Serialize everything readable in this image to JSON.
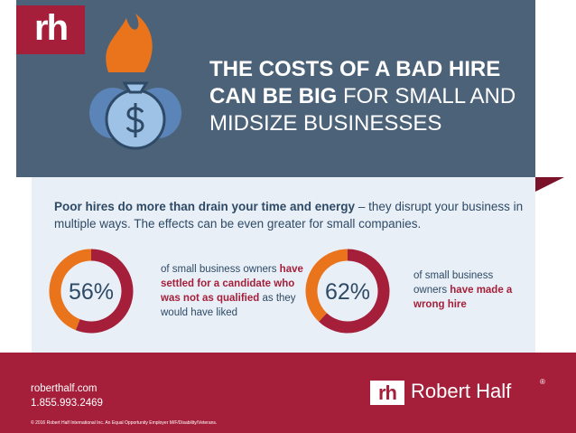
{
  "header": {
    "logo": "rh",
    "title": {
      "line1": "THE COSTS OF A BAD HIRE",
      "bold": "CAN BE BIG",
      "rest": " FOR SMALL AND",
      "line3": "MIDSIZE BUSINESSES"
    }
  },
  "intro": {
    "bold": "Poor hires do more than drain your time and energy",
    "text": " – they disrupt your business in multiple ways. The effects can be even greater for small companies."
  },
  "stats": [
    {
      "value": 56,
      "value_label": "56%",
      "before": "of small business owners ",
      "bold": "have settled for a candidate who was not as qualified",
      "after": " as they would have liked"
    },
    {
      "value": 62,
      "value_label": "62%",
      "before": "of small business owners ",
      "bold": "have made a wrong hire",
      "after": ""
    }
  ],
  "footer": {
    "website": "roberthalf.com",
    "phone": "1.855.993.2469",
    "copyright": "© 2016 Robert Half International Inc. An Equal Opportunity Employer M/F/Disability/Veterans.",
    "brand": "Robert Half",
    "registered": "®"
  }
}
